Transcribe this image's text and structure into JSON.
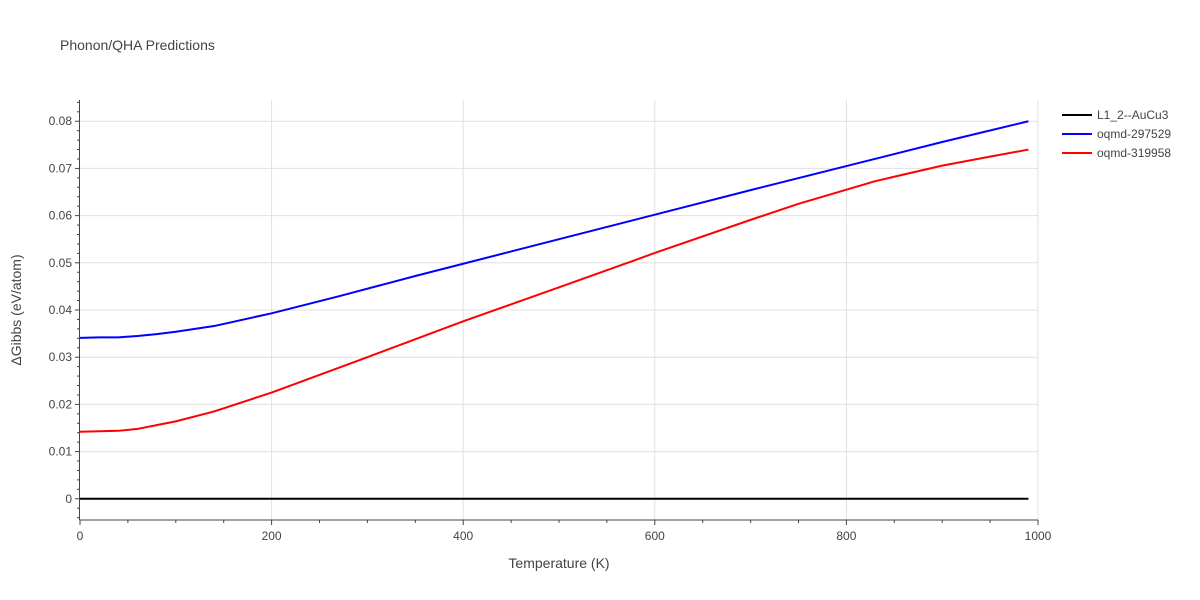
{
  "chart_data": {
    "type": "line",
    "title": "Phonon/QHA Predictions",
    "xlabel": "Temperature (K)",
    "ylabel": "ΔGibbs (eV/atom)",
    "xlim": [
      0,
      1000
    ],
    "ylim": [
      -0.0045,
      0.0845
    ],
    "x_ticks": [
      0,
      200,
      400,
      600,
      800,
      1000
    ],
    "x_tick_labels": [
      "0",
      "200",
      "400",
      "600",
      "800",
      "1000"
    ],
    "y_ticks": [
      0,
      0.01,
      0.02,
      0.03,
      0.04,
      0.05,
      0.06,
      0.07,
      0.08
    ],
    "y_tick_labels": [
      "0",
      "0.01",
      "0.02",
      "0.03",
      "0.04",
      "0.05",
      "0.06",
      "0.07",
      "0.08"
    ],
    "grid": true,
    "legend_position": "top-right",
    "series": [
      {
        "name": "L1_2--AuCu3",
        "color": "#000000",
        "x": [
          0,
          990
        ],
        "y": [
          0,
          0
        ]
      },
      {
        "name": "oqmd-297529",
        "color": "#0000ff",
        "x": [
          0,
          20,
          40,
          60,
          80,
          100,
          140,
          200,
          270,
          350,
          400,
          500,
          600,
          700,
          800,
          900,
          990
        ],
        "y": [
          0.0341,
          0.0342,
          0.0342,
          0.0345,
          0.0349,
          0.0354,
          0.0366,
          0.0393,
          0.0429,
          0.0472,
          0.0498,
          0.055,
          0.0602,
          0.0654,
          0.0705,
          0.0756,
          0.08
        ]
      },
      {
        "name": "oqmd-319958",
        "color": "#ff0000",
        "x": [
          0,
          20,
          40,
          60,
          80,
          100,
          140,
          200,
          300,
          400,
          500,
          580,
          600,
          700,
          750,
          800,
          830,
          900,
          950,
          990
        ],
        "y": [
          0.0142,
          0.0143,
          0.0144,
          0.0148,
          0.0156,
          0.0164,
          0.0185,
          0.0225,
          0.03,
          0.0376,
          0.0448,
          0.0506,
          0.0521,
          0.0591,
          0.0625,
          0.0655,
          0.0673,
          0.0706,
          0.0725,
          0.074
        ]
      }
    ]
  }
}
